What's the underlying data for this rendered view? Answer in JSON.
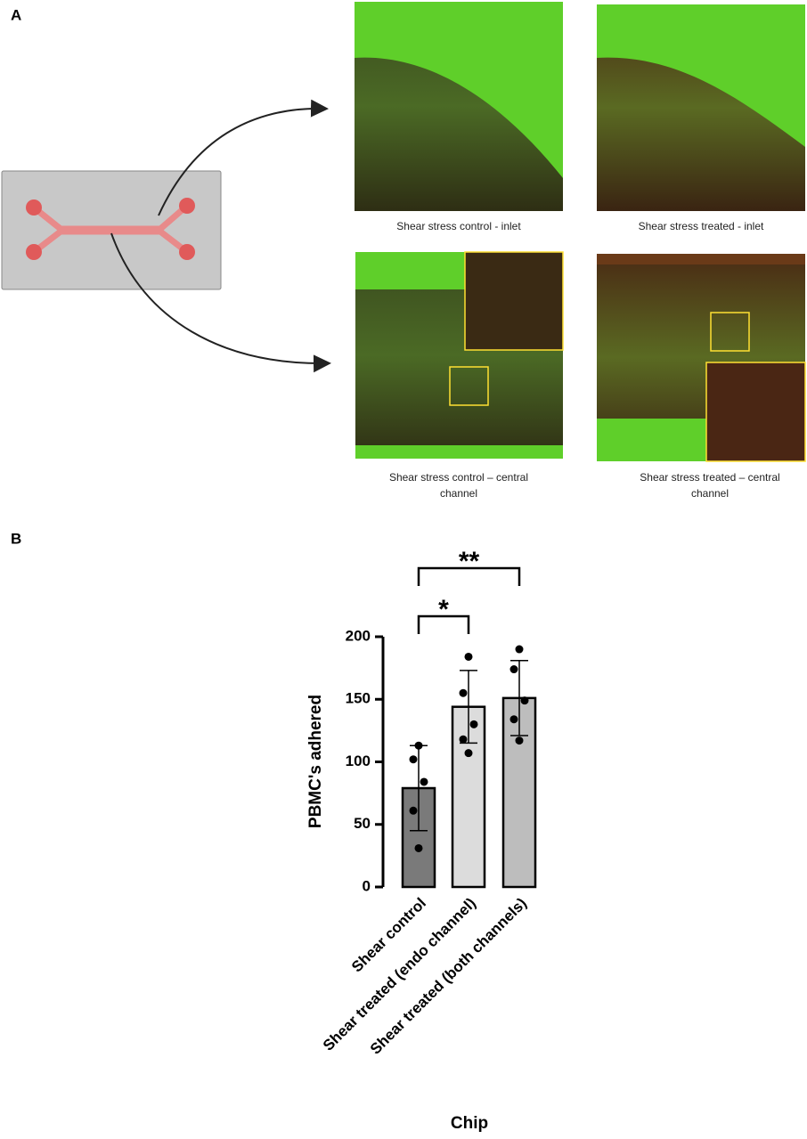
{
  "panel_a": {
    "label": "A",
    "captions": [
      "Shear stress control - inlet",
      "Shear stress treated - inlet",
      "Shear stress control – central",
      "channel",
      "Shear stress treated – central",
      "channel"
    ]
  },
  "chart_data": {
    "type": "bar",
    "panel_label": "B",
    "y_label": "PBMC's adhered",
    "x_label": "Chip",
    "categories": [
      "Shear control",
      "Shear treated (endo channel)",
      "Shear treated (both channels)"
    ],
    "values": [
      79,
      144,
      151
    ],
    "errors": [
      34,
      29,
      30
    ],
    "points": [
      [
        113,
        102,
        84,
        61,
        31
      ],
      [
        184,
        155,
        130,
        118,
        107
      ],
      [
        190,
        174,
        149,
        134,
        117
      ]
    ],
    "colors": [
      "#7a7a7a",
      "#dcdcdc",
      "#bdbdbd"
    ],
    "ylim": [
      0,
      200
    ],
    "yticks": [
      0,
      50,
      100,
      150,
      200
    ],
    "annotations": [
      "*",
      "**"
    ]
  }
}
